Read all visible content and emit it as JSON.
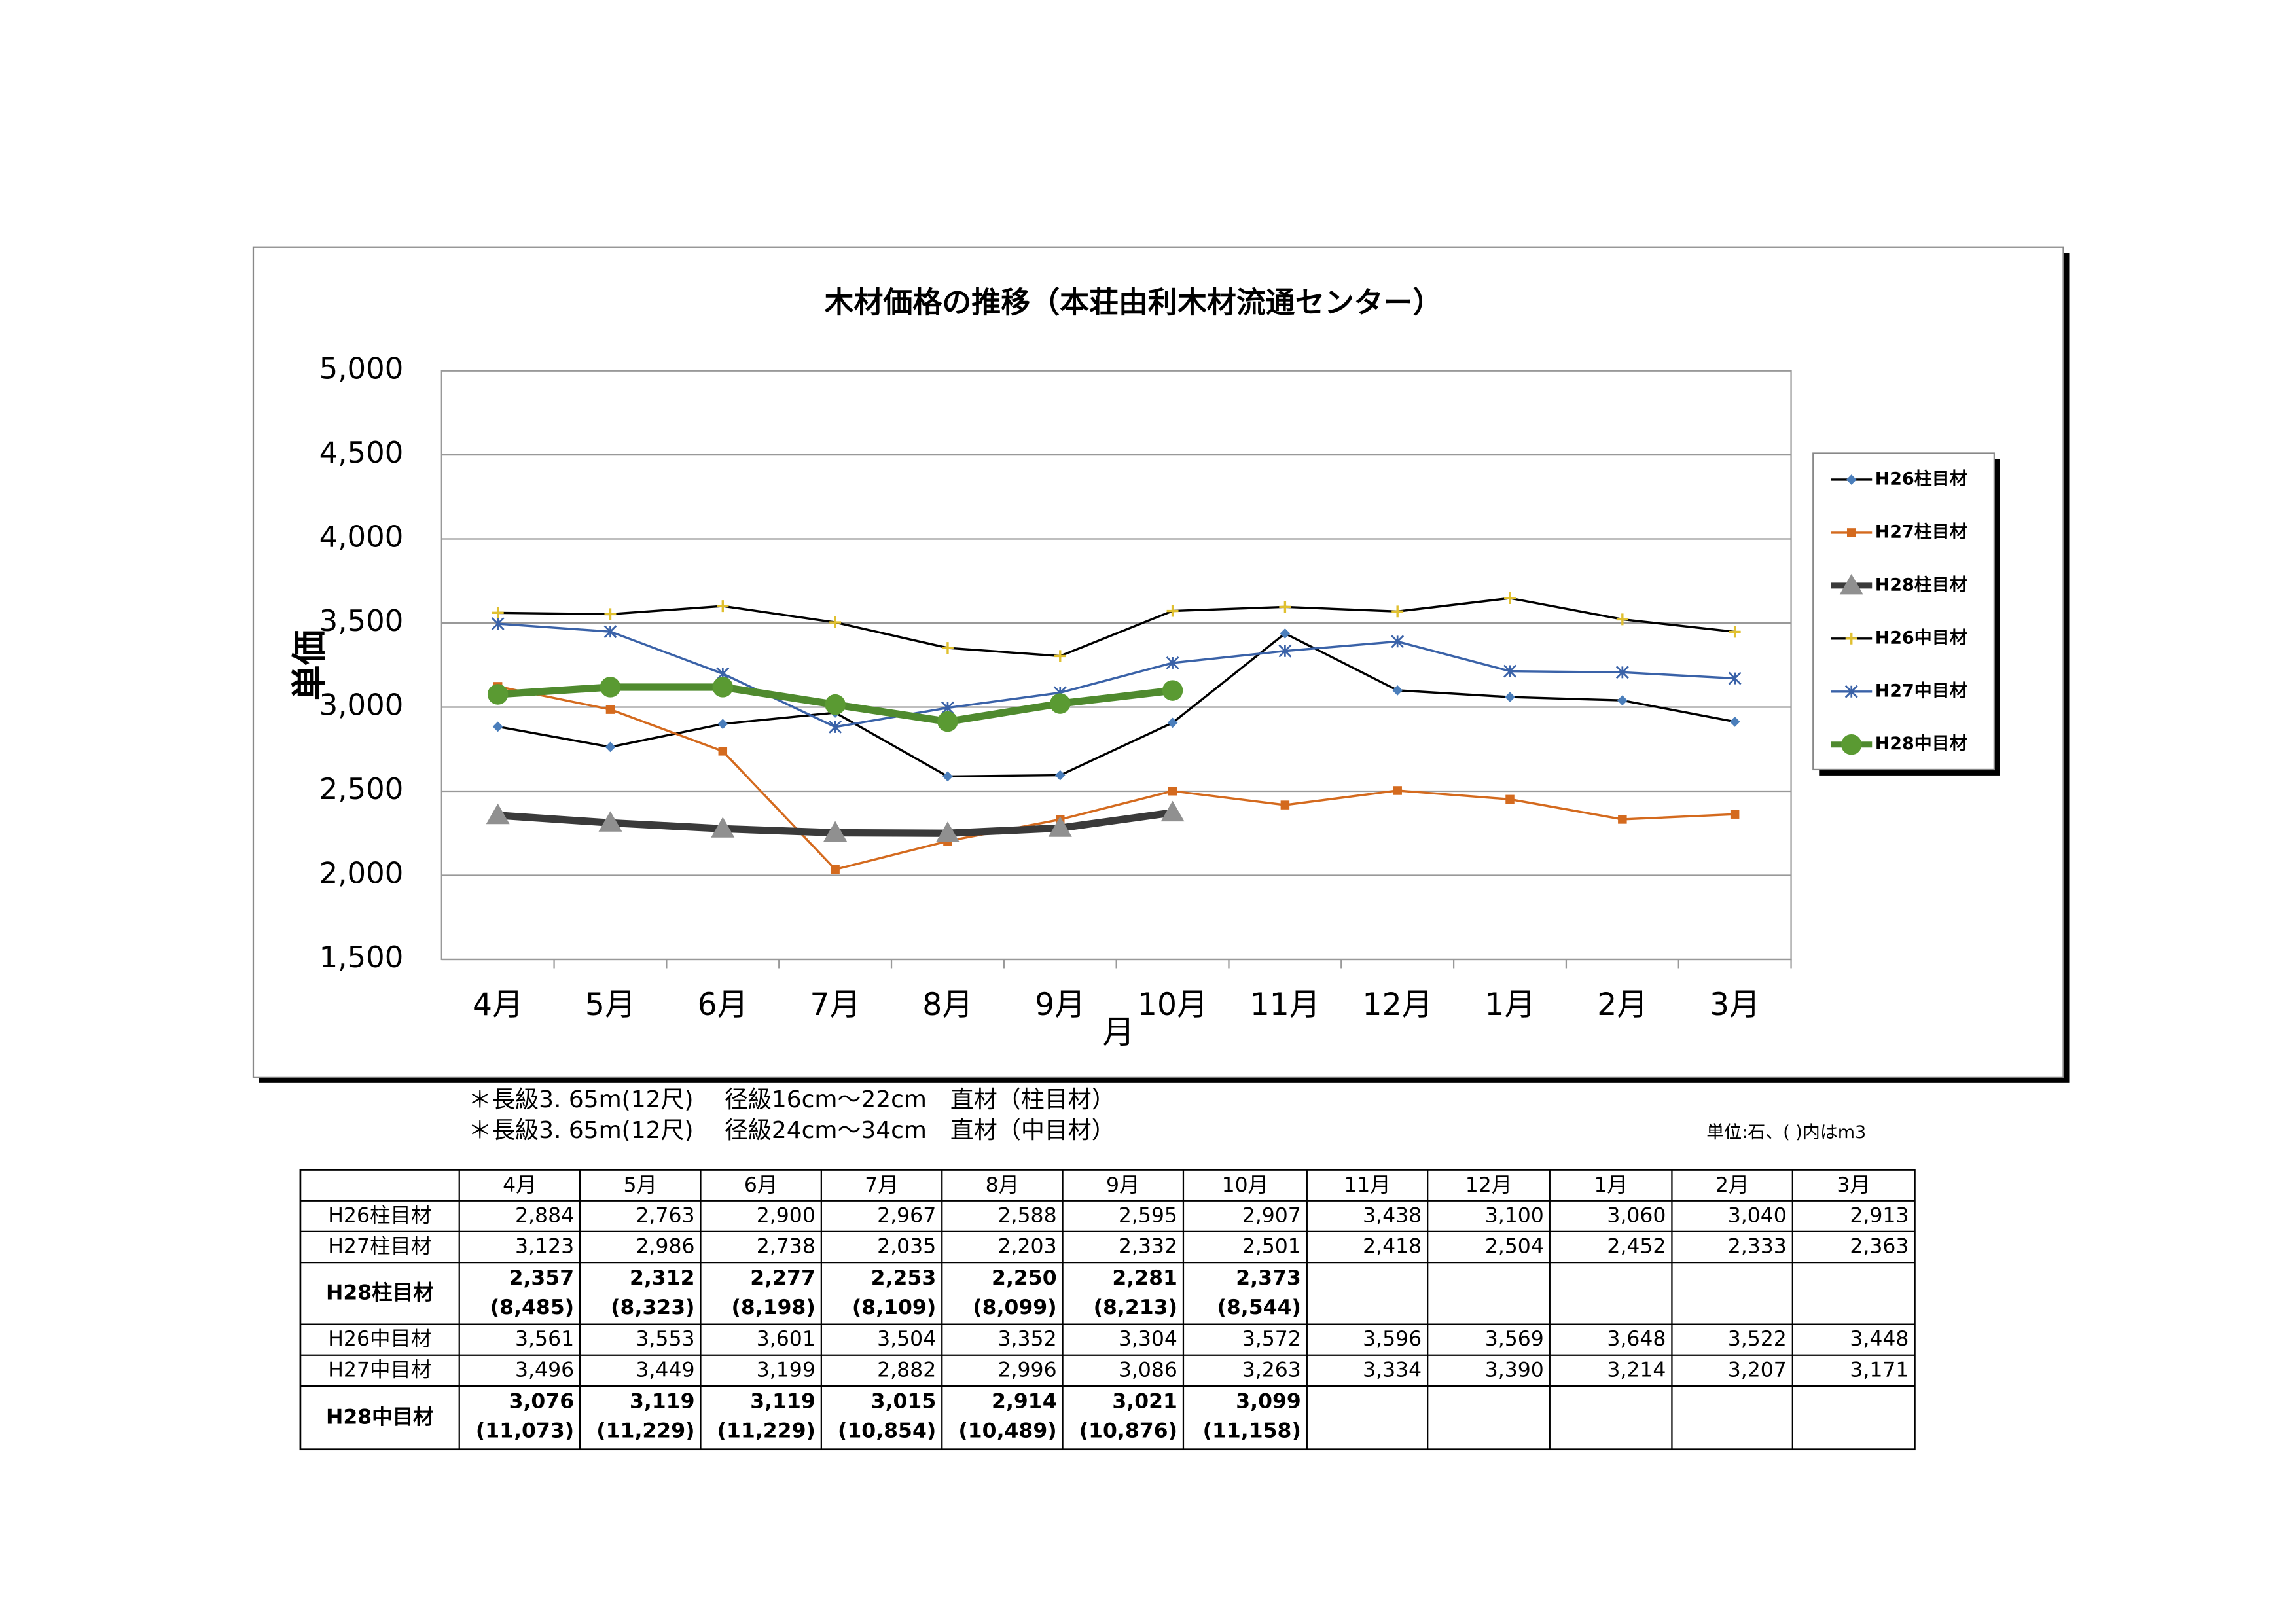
{
  "chart_data": {
    "type": "line",
    "title": "木材価格の推移（本荘由利木材流通センター）",
    "ylabel": "単価",
    "xlabel": "月",
    "categories": [
      "4月",
      "5月",
      "6月",
      "7月",
      "8月",
      "9月",
      "10月",
      "11月",
      "12月",
      "1月",
      "2月",
      "3月"
    ],
    "ylim": [
      1500,
      5000
    ],
    "yticks": [
      {
        "value": 1500,
        "label": "1,500"
      },
      {
        "value": 2000,
        "label": "2,000"
      },
      {
        "value": 2500,
        "label": "2,500"
      },
      {
        "value": 3000,
        "label": "3,000"
      },
      {
        "value": 3500,
        "label": "3,500"
      },
      {
        "value": 4000,
        "label": "4,000"
      },
      {
        "value": 4500,
        "label": "4,500"
      },
      {
        "value": 5000,
        "label": "5,000"
      }
    ],
    "grid": true,
    "legend": "right",
    "series": [
      {
        "name": "H26柱目材",
        "color": "#000000",
        "marker_color": "#4a7ebb",
        "marker": "diamond",
        "width": 1.5,
        "values": [
          2884,
          2763,
          2900,
          2967,
          2588,
          2595,
          2907,
          3438,
          3100,
          3060,
          3040,
          2913
        ],
        "value_labels": [
          "2,884",
          "2,763",
          "2,900",
          "2,967",
          "2,588",
          "2,595",
          "2,907",
          "3,438",
          "3,100",
          "3,060",
          "3,040",
          "2,913"
        ]
      },
      {
        "name": "H27柱目材",
        "color": "#d46a1e",
        "marker_color": "#d46a1e",
        "marker": "square",
        "width": 1.5,
        "values": [
          3123,
          2986,
          2738,
          2035,
          2203,
          2332,
          2501,
          2418,
          2504,
          2452,
          2333,
          2363
        ],
        "value_labels": [
          "3,123",
          "2,986",
          "2,738",
          "2,035",
          "2,203",
          "2,332",
          "2,501",
          "2,418",
          "2,504",
          "2,452",
          "2,333",
          "2,363"
        ]
      },
      {
        "name": "H28柱目材",
        "color": "#3a3a3a",
        "marker_color": "#909090",
        "marker": "triangle",
        "width": 5,
        "values": [
          2357,
          2312,
          2277,
          2253,
          2250,
          2281,
          2373,
          null,
          null,
          null,
          null,
          null
        ],
        "value_labels": [
          "2,357",
          "2,312",
          "2,277",
          "2,253",
          "2,250",
          "2,281",
          "2,373",
          null,
          null,
          null,
          null,
          null
        ],
        "m3_labels": [
          "(8,485)",
          "(8,323)",
          "(8,198)",
          "(8,109)",
          "(8,099)",
          "(8,213)",
          "(8,544)",
          null,
          null,
          null,
          null,
          null
        ]
      },
      {
        "name": "H26中目材",
        "color": "#000000",
        "marker_color": "#e0c030",
        "marker": "plus",
        "width": 1.5,
        "values": [
          3561,
          3553,
          3601,
          3504,
          3352,
          3304,
          3572,
          3596,
          3569,
          3648,
          3522,
          3448
        ],
        "value_labels": [
          "3,561",
          "3,553",
          "3,601",
          "3,504",
          "3,352",
          "3,304",
          "3,572",
          "3,596",
          "3,569",
          "3,648",
          "3,522",
          "3,448"
        ]
      },
      {
        "name": "H27中目材",
        "color": "#3a62a8",
        "marker_color": "#3a62a8",
        "marker": "asterisk",
        "width": 1.5,
        "values": [
          3496,
          3449,
          3199,
          2882,
          2996,
          3086,
          3263,
          3334,
          3390,
          3214,
          3207,
          3171
        ],
        "value_labels": [
          "3,496",
          "3,449",
          "3,199",
          "2,882",
          "2,996",
          "3,086",
          "3,263",
          "3,334",
          "3,390",
          "3,214",
          "3,207",
          "3,171"
        ]
      },
      {
        "name": "H28中目材",
        "color": "#4f8a2e",
        "marker_color": "#5a9a32",
        "marker": "circle",
        "width": 5,
        "values": [
          3076,
          3119,
          3119,
          3015,
          2914,
          3021,
          3099,
          null,
          null,
          null,
          null,
          null
        ],
        "value_labels": [
          "3,076",
          "3,119",
          "3,119",
          "3,015",
          "2,914",
          "3,021",
          "3,099",
          null,
          null,
          null,
          null,
          null
        ],
        "m3_labels": [
          "(11,073)",
          "(11,229)",
          "(11,229)",
          "(10,854)",
          "(10,489)",
          "(10,876)",
          "(11,158)",
          null,
          null,
          null,
          null,
          null
        ]
      }
    ]
  },
  "notes": [
    "＊長級3. 65m(12尺)　 径級16cm～22cm　直材（柱目材）",
    "＊長級3. 65m(12尺)　 径級24cm～34cm　直材（中目材）"
  ],
  "unit_note": "単位:石、( )内はm3"
}
